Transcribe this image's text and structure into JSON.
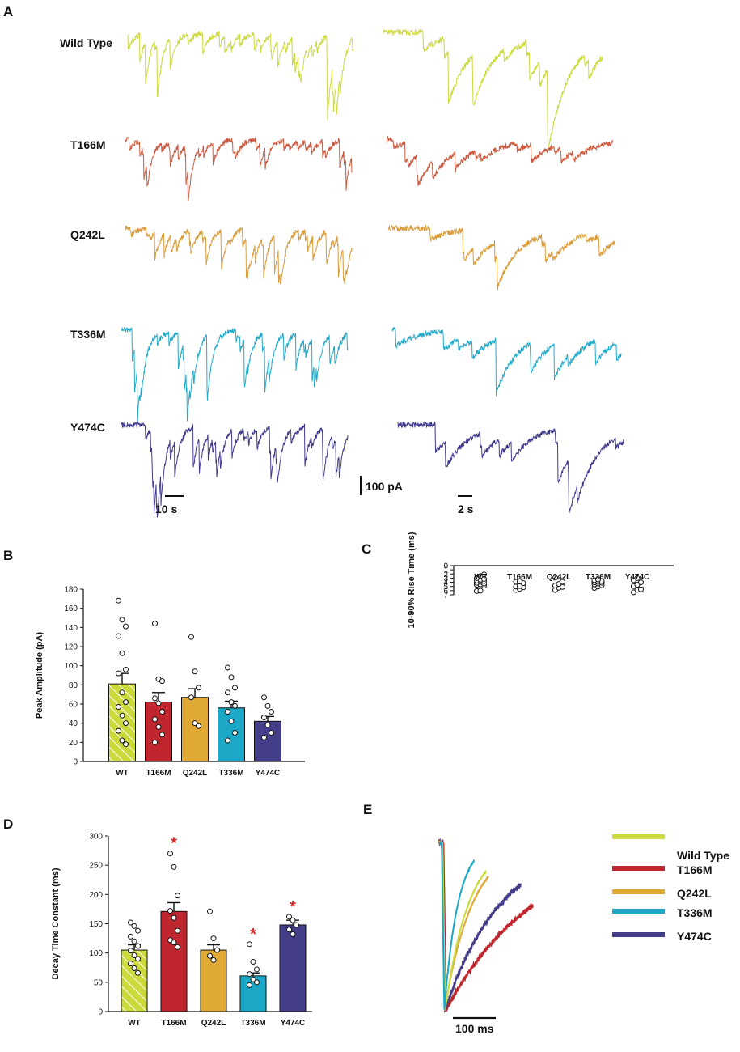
{
  "panels": {
    "A": "A",
    "B": "B",
    "C": "C",
    "D": "D",
    "E": "E"
  },
  "colors": {
    "Wild Type": "#cbd93a",
    "T166M": "#c0262d",
    "Q242L": "#e0a933",
    "T336M": "#1aa8c6",
    "Y474C": "#443d8a",
    "trace_T166M": "#cc5a40",
    "trace_Q242L": "#d99b3a",
    "trace_T336M": "#22aacb",
    "trace_Y474C": "#3f3a8c"
  },
  "panelA": {
    "rows": [
      "Wild Type",
      "T166M",
      "Q242L",
      "T336M",
      "Y474C"
    ],
    "scale_time_long": "10 s",
    "scale_time_short": "2 s",
    "scale_current": "100 pA"
  },
  "chart_data": [
    {
      "type": "bar",
      "panel": "B",
      "title": "",
      "xlabel": "",
      "ylabel": "Peak Amplitude (pA)",
      "categories": [
        "WT",
        "T166M",
        "Q242L",
        "T336M",
        "Y474C"
      ],
      "values": [
        81,
        62,
        67,
        56,
        42
      ],
      "sem": [
        11,
        10,
        9,
        7,
        5
      ],
      "points": [
        [
          168,
          148,
          141,
          131,
          113,
          96,
          92,
          72,
          62,
          57,
          48,
          40,
          32,
          22,
          18
        ],
        [
          144,
          86,
          84,
          66,
          61,
          52,
          44,
          36,
          28,
          20
        ],
        [
          130,
          94,
          77,
          67,
          40,
          37
        ],
        [
          98,
          88,
          77,
          72,
          62,
          58,
          52,
          42,
          30,
          22
        ],
        [
          67,
          58,
          52,
          46,
          38,
          30,
          25
        ]
      ],
      "ylim": [
        0,
        180
      ],
      "yticks": [
        0,
        20,
        40,
        60,
        80,
        100,
        120,
        140,
        160,
        180
      ],
      "hatched_first": true
    },
    {
      "type": "bar",
      "panel": "C",
      "title": "",
      "xlabel": "",
      "ylabel": "10-90% Rise Time (ms)",
      "categories": [
        "WT",
        "T166M",
        "Q242L",
        "T336M",
        "Y474C"
      ],
      "values": [
        3.9,
        4.9,
        4.7,
        4.0,
        4.85
      ],
      "sem": [
        0.3,
        0.2,
        0.25,
        0.2,
        0.4
      ],
      "points": [
        [
          6.1,
          6.0,
          4.8,
          4.6,
          4.5,
          4.3,
          4.1,
          3.9,
          3.7,
          3.6,
          3.4,
          3.2,
          3.0,
          2.5,
          2.1
        ],
        [
          5.85,
          5.6,
          5.2,
          5.0,
          4.9,
          4.2,
          3.9,
          3.8
        ],
        [
          5.85,
          5.3,
          5.1,
          4.8,
          4.4,
          3.9,
          2.9
        ],
        [
          5.35,
          5.0,
          4.7,
          4.5,
          4.3,
          4.1,
          4.0,
          3.9,
          3.7,
          3.5,
          3.3
        ],
        [
          6.4,
          5.8,
          5.7,
          4.9,
          4.6,
          4.0,
          3.5,
          3.0
        ]
      ],
      "ylim": [
        0,
        7
      ],
      "yticks": [
        0,
        1,
        2,
        3,
        4,
        5,
        6,
        7
      ],
      "hatched_first": true
    },
    {
      "type": "bar",
      "panel": "D",
      "title": "",
      "xlabel": "",
      "ylabel": "Decay Time Constant (ms)",
      "categories": [
        "WT",
        "T166M",
        "Q242L",
        "T336M",
        "Y474C"
      ],
      "values": [
        105,
        171,
        105,
        61,
        148
      ],
      "sem": [
        9,
        15,
        9,
        5,
        8
      ],
      "points": [
        [
          152,
          146,
          138,
          128,
          120,
          112,
          104,
          96,
          90,
          82,
          74,
          66
        ],
        [
          270,
          247,
          198,
          172,
          160,
          138,
          122,
          118,
          110
        ],
        [
          171,
          125,
          105,
          95,
          88
        ],
        [
          115,
          85,
          72,
          64,
          55,
          50,
          45
        ],
        [
          162,
          156,
          148,
          140,
          132
        ]
      ],
      "significant": [
        false,
        true,
        false,
        true,
        true
      ],
      "significance_symbol": "*",
      "ylim": [
        0,
        300
      ],
      "yticks": [
        0,
        50,
        100,
        150,
        200,
        250,
        300
      ],
      "hatched_first": true
    },
    {
      "type": "line",
      "panel": "E",
      "title": "",
      "xlabel": "",
      "ylabel": "",
      "scale_bar": "100 ms",
      "series": [
        {
          "name": "Wild Type",
          "peak_ms": 14,
          "tau_ms": 55,
          "end_ms": 110
        },
        {
          "name": "T166M",
          "peak_ms": 16,
          "tau_ms": 210,
          "end_ms": 218
        },
        {
          "name": "Q242L",
          "peak_ms": 13,
          "tau_ms": 65,
          "end_ms": 115
        },
        {
          "name": "T336M",
          "peak_ms": 12,
          "tau_ms": 32,
          "end_ms": 82
        },
        {
          "name": "Y474C",
          "peak_ms": 14,
          "tau_ms": 130,
          "end_ms": 190
        }
      ]
    }
  ]
}
